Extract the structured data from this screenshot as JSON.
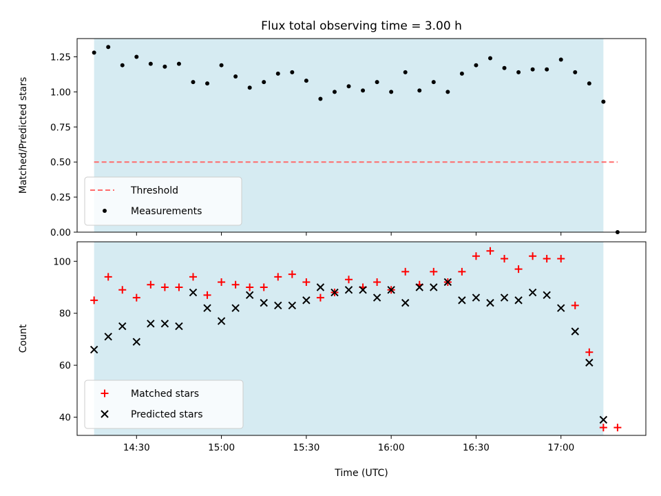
{
  "figure": {
    "title": "Flux total observing time = 3.00 h",
    "xlabel": "Time (UTC)"
  },
  "colors": {
    "shade": "#add8e6",
    "threshold": "#ff6b6b",
    "measurements": "#000000",
    "matched": "#ff0000",
    "predicted": "#000000"
  },
  "chart_data": [
    {
      "type": "scatter",
      "ylabel": "Matched/Predicted stars",
      "xlim": [
        "14:09",
        "17:30"
      ],
      "ylim": [
        0,
        1.38
      ],
      "yticks": [
        0.0,
        0.25,
        0.5,
        0.75,
        1.0,
        1.25
      ],
      "ytick_labels": [
        "0.00",
        "0.25",
        "0.50",
        "0.75",
        "1.00",
        "1.25"
      ],
      "shaded_span": [
        "14:15",
        "17:15"
      ],
      "threshold": {
        "name": "Threshold",
        "y": 0.5,
        "x": [
          "14:15",
          "17:20"
        ],
        "style": "dashed"
      },
      "legend": {
        "position": "lower-left",
        "entries": [
          "Threshold",
          "Measurements"
        ]
      },
      "series": [
        {
          "name": "Measurements",
          "marker": "dot",
          "x": [
            "14:15",
            "14:20",
            "14:25",
            "14:30",
            "14:35",
            "14:40",
            "14:45",
            "14:50",
            "14:55",
            "15:00",
            "15:05",
            "15:10",
            "15:15",
            "15:20",
            "15:25",
            "15:30",
            "15:35",
            "15:40",
            "15:45",
            "15:50",
            "15:55",
            "16:00",
            "16:05",
            "16:10",
            "16:15",
            "16:20",
            "16:25",
            "16:30",
            "16:35",
            "16:40",
            "16:45",
            "16:50",
            "16:55",
            "17:00",
            "17:05",
            "17:10",
            "17:15",
            "17:20"
          ],
          "y": [
            1.28,
            1.32,
            1.19,
            1.25,
            1.2,
            1.18,
            1.2,
            1.07,
            1.06,
            1.19,
            1.11,
            1.03,
            1.07,
            1.13,
            1.14,
            1.08,
            0.95,
            1.0,
            1.04,
            1.01,
            1.07,
            1.0,
            1.14,
            1.01,
            1.07,
            1.0,
            1.13,
            1.19,
            1.24,
            1.17,
            1.14,
            1.16,
            1.16,
            1.23,
            1.14,
            1.06,
            0.93,
            0.0
          ]
        }
      ]
    },
    {
      "type": "scatter",
      "ylabel": "Count",
      "xlim": [
        "14:09",
        "17:30"
      ],
      "ylim": [
        33,
        107.5
      ],
      "yticks": [
        40,
        60,
        80,
        100
      ],
      "ytick_labels": [
        "40",
        "60",
        "80",
        "100"
      ],
      "xticks": [
        "14:30",
        "15:00",
        "15:30",
        "16:00",
        "16:30",
        "17:00"
      ],
      "shaded_span": [
        "14:15",
        "17:15"
      ],
      "legend": {
        "position": "lower-left",
        "entries": [
          "Matched stars",
          "Predicted stars"
        ]
      },
      "series": [
        {
          "name": "Matched stars",
          "marker": "plus",
          "x": [
            "14:15",
            "14:20",
            "14:25",
            "14:30",
            "14:35",
            "14:40",
            "14:45",
            "14:50",
            "14:55",
            "15:00",
            "15:05",
            "15:10",
            "15:15",
            "15:20",
            "15:25",
            "15:30",
            "15:35",
            "15:40",
            "15:45",
            "15:50",
            "15:55",
            "16:00",
            "16:05",
            "16:10",
            "16:15",
            "16:20",
            "16:25",
            "16:30",
            "16:35",
            "16:40",
            "16:45",
            "16:50",
            "16:55",
            "17:00",
            "17:05",
            "17:10",
            "17:15",
            "17:20"
          ],
          "y": [
            85,
            94,
            89,
            86,
            91,
            90,
            90,
            94,
            87,
            92,
            91,
            90,
            90,
            94,
            95,
            92,
            86,
            88,
            93,
            90,
            92,
            89,
            96,
            91,
            96,
            92,
            96,
            102,
            104,
            101,
            97,
            102,
            101,
            101,
            83,
            65,
            36,
            36
          ]
        },
        {
          "name": "Predicted stars",
          "marker": "x",
          "x": [
            "14:15",
            "14:20",
            "14:25",
            "14:30",
            "14:35",
            "14:40",
            "14:45",
            "14:50",
            "14:55",
            "15:00",
            "15:05",
            "15:10",
            "15:15",
            "15:20",
            "15:25",
            "15:30",
            "15:35",
            "15:40",
            "15:45",
            "15:50",
            "15:55",
            "16:00",
            "16:05",
            "16:10",
            "16:15",
            "16:20",
            "16:25",
            "16:30",
            "16:35",
            "16:40",
            "16:45",
            "16:50",
            "16:55",
            "17:00",
            "17:05",
            "17:10",
            "17:15"
          ],
          "y": [
            66,
            71,
            75,
            69,
            76,
            76,
            75,
            88,
            82,
            77,
            82,
            87,
            84,
            83,
            83,
            85,
            90,
            88,
            89,
            89,
            86,
            89,
            84,
            90,
            90,
            92,
            85,
            86,
            84,
            86,
            85,
            88,
            87,
            82,
            73,
            61,
            39
          ]
        }
      ]
    }
  ]
}
